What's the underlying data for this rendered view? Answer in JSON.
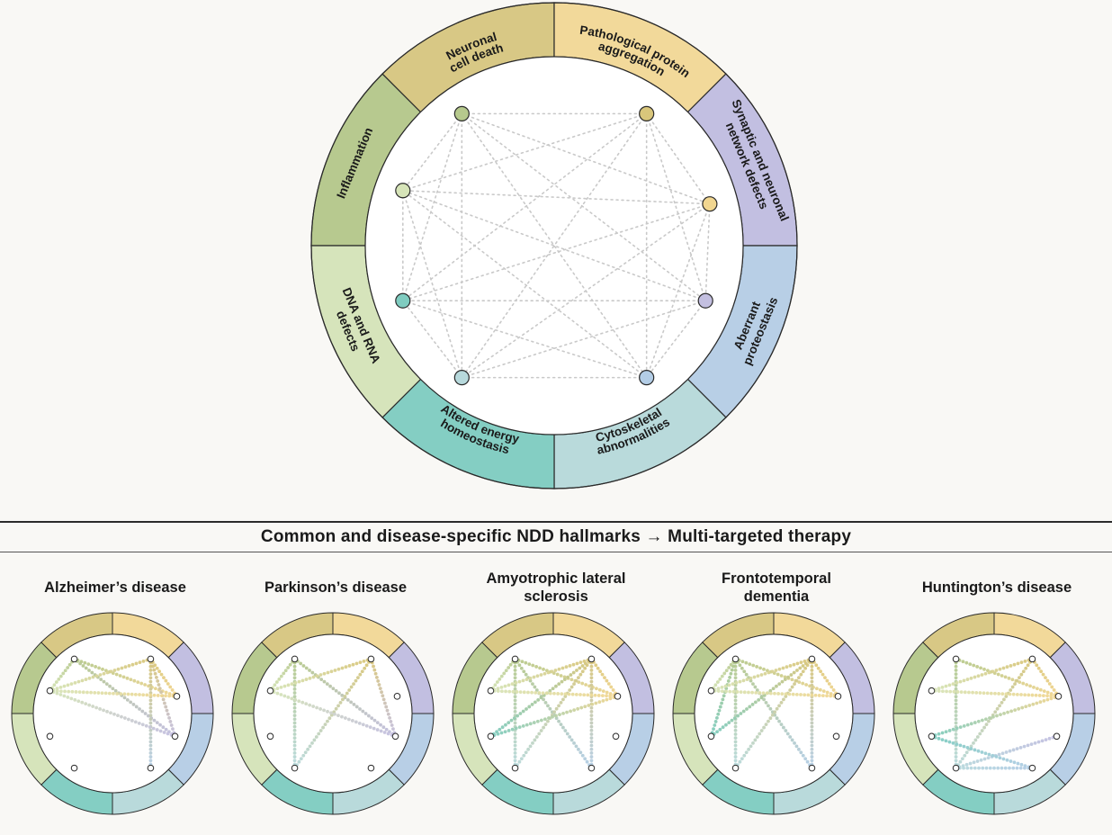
{
  "hallmarks": [
    {
      "id": "neuronal_cell_death",
      "label": "Neuronal\ncell death",
      "color": "#b7c98f",
      "node_color": "#b6c98d"
    },
    {
      "id": "pathological_protein_aggregation",
      "label": "Pathological protein\naggregation",
      "color": "#d8c885",
      "node_color": "#d9c67b"
    },
    {
      "id": "synaptic_network_defects",
      "label": "Synaptic and neuronal\nnetwork defects",
      "color": "#f2d99a",
      "node_color": "#f1d690"
    },
    {
      "id": "aberrant_proteostasis",
      "label": "Aberrant\nproteostasis",
      "color": "#c2bfe1",
      "node_color": "#c3bfe0"
    },
    {
      "id": "cytoskeletal_abnormalities",
      "label": "Cytoskeletal\nabnormalities",
      "color": "#b8cfe6",
      "node_color": "#b3cde6"
    },
    {
      "id": "altered_energy_homeostasis",
      "label": "Altered energy\nhomeostasis",
      "color": "#b9dadb",
      "node_color": "#b7d9dc"
    },
    {
      "id": "dna_rna_defects",
      "label": "DNA and RNA\ndefects",
      "color": "#84cec3",
      "node_color": "#7fccc0"
    },
    {
      "id": "inflammation",
      "label": "Inflammation",
      "color": "#d6e4bb",
      "node_color": "#d6e4b8"
    }
  ],
  "section_title": "Common and disease-specific NDD hallmarks → Multi-targeted therapy",
  "diseases": [
    {
      "name": "Alzheimer’s disease",
      "links": [
        [
          0,
          2
        ],
        [
          0,
          3
        ],
        [
          0,
          7
        ],
        [
          1,
          2
        ],
        [
          1,
          3
        ],
        [
          1,
          4
        ],
        [
          1,
          7
        ],
        [
          2,
          7
        ],
        [
          3,
          7
        ]
      ]
    },
    {
      "name": "Parkinson’s disease",
      "links": [
        [
          0,
          3
        ],
        [
          0,
          5
        ],
        [
          0,
          7
        ],
        [
          1,
          3
        ],
        [
          1,
          5
        ],
        [
          1,
          7
        ],
        [
          3,
          7
        ]
      ]
    },
    {
      "name": "Amyotrophic lateral\nsclerosis",
      "links": [
        [
          0,
          2
        ],
        [
          0,
          4
        ],
        [
          0,
          5
        ],
        [
          0,
          7
        ],
        [
          1,
          2
        ],
        [
          1,
          4
        ],
        [
          1,
          5
        ],
        [
          1,
          6
        ],
        [
          1,
          7
        ],
        [
          2,
          6
        ],
        [
          2,
          7
        ]
      ]
    },
    {
      "name": "Frontotemporal\ndementia",
      "links": [
        [
          0,
          2
        ],
        [
          0,
          4
        ],
        [
          0,
          5
        ],
        [
          0,
          6
        ],
        [
          0,
          7
        ],
        [
          1,
          2
        ],
        [
          1,
          4
        ],
        [
          1,
          5
        ],
        [
          1,
          6
        ],
        [
          1,
          7
        ],
        [
          2,
          7
        ]
      ]
    },
    {
      "name": "Huntington’s disease",
      "links": [
        [
          0,
          2
        ],
        [
          0,
          5
        ],
        [
          1,
          2
        ],
        [
          1,
          5
        ],
        [
          1,
          7
        ],
        [
          2,
          6
        ],
        [
          2,
          7
        ],
        [
          3,
          5
        ],
        [
          4,
          5
        ],
        [
          4,
          6
        ]
      ]
    }
  ]
}
